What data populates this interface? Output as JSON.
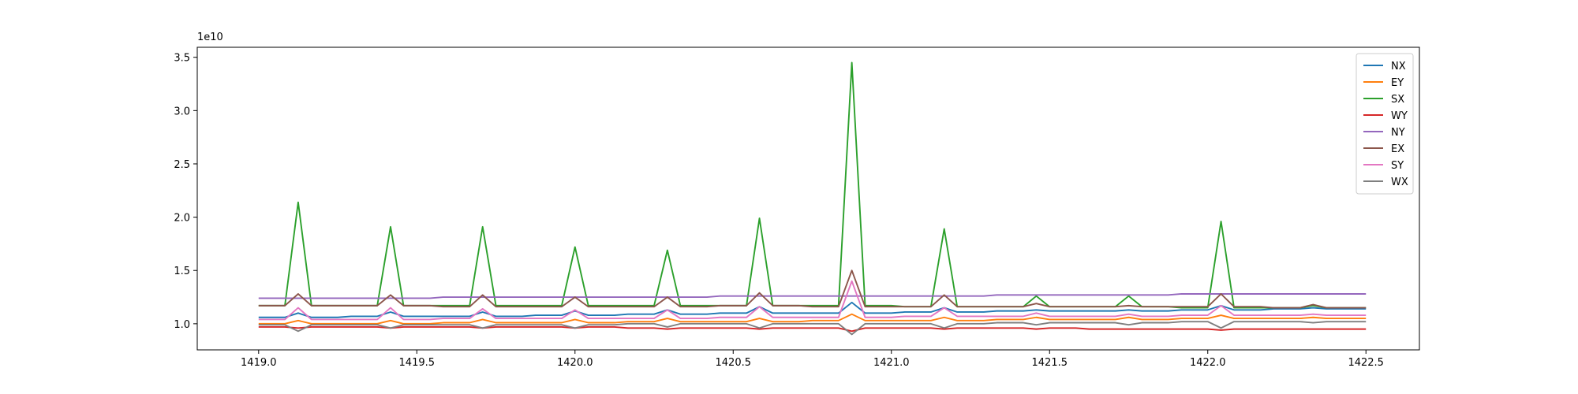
{
  "chart_data": {
    "type": "line",
    "x": [
      1419,
      1419.042,
      1419.083,
      1419.125,
      1419.167,
      1419.208,
      1419.25,
      1419.292,
      1419.333,
      1419.375,
      1419.417,
      1419.458,
      1419.5,
      1419.542,
      1419.583,
      1419.625,
      1419.667,
      1419.708,
      1419.75,
      1419.792,
      1419.833,
      1419.875,
      1419.917,
      1419.958,
      1420,
      1420.042,
      1420.083,
      1420.125,
      1420.167,
      1420.208,
      1420.25,
      1420.292,
      1420.333,
      1420.375,
      1420.417,
      1420.458,
      1420.5,
      1420.542,
      1420.583,
      1420.625,
      1420.667,
      1420.708,
      1420.75,
      1420.792,
      1420.833,
      1420.875,
      1420.917,
      1420.958,
      1421,
      1421.042,
      1421.083,
      1421.125,
      1421.167,
      1421.208,
      1421.25,
      1421.292,
      1421.333,
      1421.375,
      1421.417,
      1421.458,
      1421.5,
      1421.542,
      1421.583,
      1421.625,
      1421.667,
      1421.708,
      1421.75,
      1421.792,
      1421.833,
      1421.875,
      1421.917,
      1421.958,
      1422,
      1422.042,
      1422.083,
      1422.125,
      1422.167,
      1422.208,
      1422.25,
      1422.292,
      1422.333,
      1422.375,
      1422.417,
      1422.458,
      1422.5
    ],
    "series": [
      {
        "name": "NX",
        "color": "#1f77b4",
        "values": [
          1.06,
          1.06,
          1.06,
          1.1,
          1.06,
          1.06,
          1.06,
          1.07,
          1.07,
          1.07,
          1.11,
          1.07,
          1.07,
          1.07,
          1.07,
          1.07,
          1.07,
          1.11,
          1.07,
          1.07,
          1.07,
          1.08,
          1.08,
          1.08,
          1.12,
          1.08,
          1.08,
          1.08,
          1.09,
          1.09,
          1.09,
          1.13,
          1.09,
          1.09,
          1.09,
          1.1,
          1.1,
          1.1,
          1.16,
          1.1,
          1.1,
          1.1,
          1.1,
          1.1,
          1.1,
          1.2,
          1.1,
          1.1,
          1.1,
          1.11,
          1.11,
          1.11,
          1.15,
          1.11,
          1.11,
          1.11,
          1.12,
          1.12,
          1.12,
          1.13,
          1.12,
          1.12,
          1.12,
          1.12,
          1.12,
          1.12,
          1.13,
          1.12,
          1.12,
          1.12,
          1.13,
          1.13,
          1.13,
          1.17,
          1.13,
          1.13,
          1.13,
          1.14,
          1.14,
          1.14,
          1.15,
          1.14,
          1.14,
          1.14,
          1.14
        ]
      },
      {
        "name": "EY",
        "color": "#ff7f0e",
        "values": [
          1,
          1,
          1,
          1.03,
          1,
          1,
          1,
          1,
          1,
          1,
          1.03,
          1,
          1,
          1,
          1.01,
          1.01,
          1.01,
          1.04,
          1.01,
          1.01,
          1.01,
          1.01,
          1.01,
          1.01,
          1.04,
          1.01,
          1.01,
          1.01,
          1.02,
          1.02,
          1.02,
          1.05,
          1.02,
          1.02,
          1.02,
          1.02,
          1.02,
          1.02,
          1.05,
          1.02,
          1.02,
          1.02,
          1.03,
          1.03,
          1.03,
          1.09,
          1.03,
          1.03,
          1.03,
          1.03,
          1.03,
          1.03,
          1.06,
          1.03,
          1.03,
          1.03,
          1.04,
          1.04,
          1.04,
          1.06,
          1.04,
          1.04,
          1.04,
          1.04,
          1.04,
          1.04,
          1.06,
          1.04,
          1.04,
          1.04,
          1.05,
          1.05,
          1.05,
          1.08,
          1.05,
          1.05,
          1.05,
          1.05,
          1.05,
          1.05,
          1.06,
          1.05,
          1.05,
          1.05,
          1.05
        ]
      },
      {
        "name": "SX",
        "color": "#2ca02c",
        "values": [
          1.17,
          1.17,
          1.17,
          2.14,
          1.17,
          1.17,
          1.17,
          1.17,
          1.17,
          1.17,
          1.91,
          1.17,
          1.17,
          1.17,
          1.17,
          1.17,
          1.17,
          1.91,
          1.17,
          1.17,
          1.17,
          1.17,
          1.17,
          1.17,
          1.72,
          1.17,
          1.17,
          1.17,
          1.17,
          1.17,
          1.17,
          1.69,
          1.17,
          1.17,
          1.17,
          1.17,
          1.17,
          1.17,
          1.99,
          1.17,
          1.17,
          1.17,
          1.17,
          1.17,
          1.17,
          3.45,
          1.17,
          1.17,
          1.17,
          1.16,
          1.16,
          1.16,
          1.89,
          1.16,
          1.16,
          1.16,
          1.16,
          1.16,
          1.16,
          1.26,
          1.16,
          1.16,
          1.16,
          1.16,
          1.16,
          1.16,
          1.26,
          1.16,
          1.16,
          1.16,
          1.15,
          1.15,
          1.15,
          1.96,
          1.15,
          1.15,
          1.15,
          1.15,
          1.15,
          1.15,
          1.17,
          1.15,
          1.15,
          1.15,
          1.15
        ]
      },
      {
        "name": "WY",
        "color": "#d62728",
        "values": [
          0.97,
          0.97,
          0.97,
          0.96,
          0.97,
          0.97,
          0.97,
          0.97,
          0.97,
          0.97,
          0.96,
          0.97,
          0.97,
          0.97,
          0.97,
          0.97,
          0.97,
          0.96,
          0.97,
          0.97,
          0.97,
          0.97,
          0.97,
          0.97,
          0.96,
          0.97,
          0.97,
          0.97,
          0.96,
          0.96,
          0.96,
          0.95,
          0.96,
          0.96,
          0.96,
          0.96,
          0.96,
          0.96,
          0.95,
          0.96,
          0.96,
          0.96,
          0.96,
          0.96,
          0.96,
          0.93,
          0.96,
          0.96,
          0.96,
          0.96,
          0.96,
          0.96,
          0.95,
          0.96,
          0.96,
          0.96,
          0.96,
          0.96,
          0.96,
          0.95,
          0.96,
          0.96,
          0.96,
          0.95,
          0.95,
          0.95,
          0.95,
          0.95,
          0.95,
          0.95,
          0.95,
          0.95,
          0.95,
          0.94,
          0.95,
          0.95,
          0.95,
          0.95,
          0.95,
          0.95,
          0.95,
          0.95,
          0.95,
          0.95,
          0.95
        ]
      },
      {
        "name": "NY",
        "color": "#9467bd",
        "values": [
          1.24,
          1.24,
          1.24,
          1.24,
          1.24,
          1.24,
          1.24,
          1.24,
          1.24,
          1.24,
          1.24,
          1.24,
          1.24,
          1.24,
          1.25,
          1.25,
          1.25,
          1.25,
          1.25,
          1.25,
          1.25,
          1.25,
          1.25,
          1.25,
          1.25,
          1.25,
          1.25,
          1.25,
          1.25,
          1.25,
          1.25,
          1.25,
          1.25,
          1.25,
          1.25,
          1.26,
          1.26,
          1.26,
          1.26,
          1.26,
          1.26,
          1.26,
          1.26,
          1.26,
          1.26,
          1.26,
          1.26,
          1.26,
          1.26,
          1.26,
          1.26,
          1.26,
          1.26,
          1.26,
          1.26,
          1.26,
          1.27,
          1.27,
          1.27,
          1.27,
          1.27,
          1.27,
          1.27,
          1.27,
          1.27,
          1.27,
          1.27,
          1.27,
          1.27,
          1.27,
          1.28,
          1.28,
          1.28,
          1.28,
          1.28,
          1.28,
          1.28,
          1.28,
          1.28,
          1.28,
          1.28,
          1.28,
          1.28,
          1.28,
          1.28
        ]
      },
      {
        "name": "EX",
        "color": "#8c564b",
        "values": [
          1.17,
          1.17,
          1.17,
          1.28,
          1.17,
          1.17,
          1.17,
          1.17,
          1.17,
          1.17,
          1.27,
          1.17,
          1.17,
          1.17,
          1.16,
          1.16,
          1.16,
          1.27,
          1.16,
          1.16,
          1.16,
          1.16,
          1.16,
          1.16,
          1.25,
          1.16,
          1.16,
          1.16,
          1.16,
          1.16,
          1.16,
          1.25,
          1.16,
          1.16,
          1.16,
          1.17,
          1.17,
          1.17,
          1.29,
          1.17,
          1.17,
          1.17,
          1.16,
          1.16,
          1.16,
          1.5,
          1.16,
          1.16,
          1.16,
          1.16,
          1.16,
          1.16,
          1.27,
          1.16,
          1.16,
          1.16,
          1.16,
          1.16,
          1.16,
          1.19,
          1.16,
          1.16,
          1.16,
          1.16,
          1.16,
          1.16,
          1.17,
          1.16,
          1.16,
          1.16,
          1.16,
          1.16,
          1.16,
          1.28,
          1.16,
          1.16,
          1.16,
          1.15,
          1.15,
          1.15,
          1.18,
          1.15,
          1.15,
          1.15,
          1.15
        ]
      },
      {
        "name": "SY",
        "color": "#e377c2",
        "values": [
          1.04,
          1.04,
          1.04,
          1.15,
          1.04,
          1.04,
          1.04,
          1.04,
          1.04,
          1.04,
          1.15,
          1.04,
          1.04,
          1.04,
          1.05,
          1.05,
          1.05,
          1.14,
          1.05,
          1.05,
          1.05,
          1.05,
          1.05,
          1.05,
          1.13,
          1.05,
          1.05,
          1.05,
          1.05,
          1.05,
          1.05,
          1.13,
          1.05,
          1.05,
          1.05,
          1.06,
          1.06,
          1.06,
          1.16,
          1.06,
          1.06,
          1.06,
          1.06,
          1.06,
          1.06,
          1.4,
          1.06,
          1.06,
          1.06,
          1.07,
          1.07,
          1.07,
          1.15,
          1.07,
          1.07,
          1.07,
          1.07,
          1.07,
          1.07,
          1.1,
          1.07,
          1.07,
          1.07,
          1.07,
          1.07,
          1.07,
          1.09,
          1.07,
          1.07,
          1.07,
          1.08,
          1.08,
          1.08,
          1.17,
          1.08,
          1.08,
          1.08,
          1.08,
          1.08,
          1.08,
          1.09,
          1.08,
          1.08,
          1.08,
          1.08
        ]
      },
      {
        "name": "WX",
        "color": "#7f7f7f",
        "values": [
          0.99,
          0.99,
          0.99,
          0.93,
          0.99,
          0.99,
          0.99,
          0.99,
          0.99,
          0.99,
          0.96,
          0.99,
          0.99,
          0.99,
          0.99,
          0.99,
          0.99,
          0.96,
          0.99,
          0.99,
          0.99,
          0.99,
          0.99,
          0.99,
          0.96,
          0.99,
          0.99,
          0.99,
          1,
          1,
          1,
          0.97,
          1,
          1,
          1,
          1,
          1,
          1,
          0.96,
          1,
          1,
          1,
          1,
          1,
          1,
          0.9,
          1,
          1,
          1,
          1,
          1,
          1,
          0.96,
          1,
          1,
          1,
          1.01,
          1.01,
          1.01,
          0.99,
          1.01,
          1.01,
          1.01,
          1.01,
          1.01,
          1.01,
          0.99,
          1.01,
          1.01,
          1.01,
          1.02,
          1.02,
          1.02,
          0.96,
          1.02,
          1.02,
          1.02,
          1.02,
          1.02,
          1.02,
          1.01,
          1.02,
          1.02,
          1.02,
          1.02
        ]
      }
    ],
    "xlim": [
      1418.806,
      1422.669
    ],
    "ylim": [
      0.755,
      3.594
    ],
    "xticks": [
      {
        "value": 1419,
        "label": "1419.0"
      },
      1419.5,
      {
        "value": 1420,
        "label": "1420.0"
      },
      1420.5,
      {
        "value": 1421,
        "label": "1421.0"
      },
      1421.5,
      {
        "value": 1422,
        "label": "1422.0"
      },
      1422.5
    ],
    "yticks": [
      {
        "value": 1,
        "label": "1.0"
      },
      1.5,
      {
        "value": 2,
        "label": "2.0"
      },
      2.5,
      {
        "value": 3,
        "label": "3.0"
      },
      3.5
    ],
    "y_offset_text": "1e10",
    "grid": false,
    "legend": "upper right"
  }
}
